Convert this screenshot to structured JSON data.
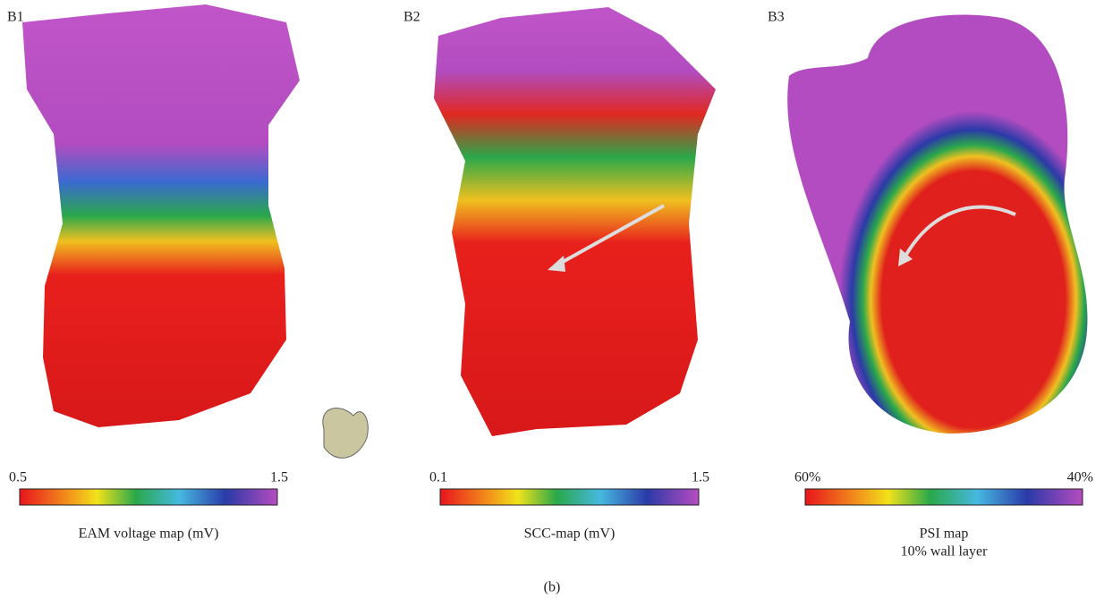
{
  "figure_label": "(b)",
  "panels": [
    {
      "label": "B1",
      "scale_min": "0.5",
      "scale_max": "1.5",
      "caption": [
        "EAM voltage map (mV)"
      ]
    },
    {
      "label": "B2",
      "scale_min": "0.1",
      "scale_max": "1.5",
      "caption": [
        "SCC-map (mV)"
      ]
    },
    {
      "label": "B3",
      "scale_min": "60%",
      "scale_max": "40%",
      "caption": [
        "PSI map",
        "10% wall layer"
      ]
    }
  ]
}
